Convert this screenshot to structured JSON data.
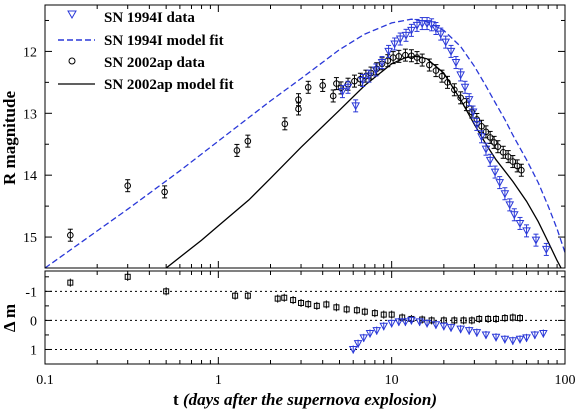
{
  "chart_data": [
    {
      "id": "top",
      "type": "scatter",
      "x_scale": "log",
      "y_inverted": true,
      "xlim": [
        0.1,
        100
      ],
      "ylim": [
        11.25,
        15.5
      ],
      "ylabel": "R magnitude",
      "yticks": [
        "12",
        "13",
        "14",
        "15"
      ],
      "legend": {
        "placement": "top-left",
        "entries": [
          {
            "label": "SN 1994I data",
            "marker": "triangle-down",
            "color": "#2a38d8"
          },
          {
            "label": "SN 1994I model fit",
            "line": "dashed",
            "color": "#2a38d8"
          },
          {
            "label": "SN 2002ap data",
            "marker": "circle",
            "color": "#000000"
          },
          {
            "label": "SN 2002ap model fit",
            "line": "solid",
            "color": "#000000"
          }
        ]
      },
      "series": [
        {
          "name": "SN 2002ap data",
          "marker": "circle",
          "color": "#000000",
          "points": [
            [
              0.14,
              14.97
            ],
            [
              0.3,
              14.17
            ],
            [
              0.49,
              14.27
            ],
            [
              1.28,
              13.6
            ],
            [
              1.48,
              13.45
            ],
            [
              2.42,
              13.17
            ],
            [
              2.9,
              12.93
            ],
            [
              2.9,
              12.78
            ],
            [
              3.3,
              12.58
            ],
            [
              4.0,
              12.55
            ],
            [
              4.6,
              12.72
            ],
            [
              4.8,
              12.52
            ],
            [
              5.1,
              12.59
            ],
            [
              5.6,
              12.53
            ],
            [
              6.1,
              12.48
            ],
            [
              6.6,
              12.45
            ],
            [
              7.1,
              12.4
            ],
            [
              7.6,
              12.35
            ],
            [
              8.2,
              12.28
            ],
            [
              8.8,
              12.2
            ],
            [
              9.5,
              12.15
            ],
            [
              10.2,
              12.1
            ],
            [
              11.0,
              12.08
            ],
            [
              12.0,
              12.06
            ],
            [
              13.0,
              12.07
            ],
            [
              14.0,
              12.1
            ],
            [
              15.0,
              12.14
            ],
            [
              16.5,
              12.22
            ],
            [
              18.0,
              12.31
            ],
            [
              19.5,
              12.4
            ],
            [
              21.0,
              12.5
            ],
            [
              23.0,
              12.62
            ],
            [
              25.0,
              12.75
            ],
            [
              27.0,
              12.86
            ],
            [
              29.0,
              12.98
            ],
            [
              31.0,
              13.1
            ],
            [
              33.0,
              13.21
            ],
            [
              35.0,
              13.3
            ],
            [
              37.0,
              13.39
            ],
            [
              39.0,
              13.47
            ],
            [
              41.0,
              13.54
            ],
            [
              44.0,
              13.63
            ],
            [
              47.0,
              13.7
            ],
            [
              50.0,
              13.78
            ],
            [
              53.0,
              13.85
            ],
            [
              56.0,
              13.92
            ]
          ]
        },
        {
          "name": "SN 1994I data",
          "marker": "triangle-down",
          "color": "#2a38d8",
          "points": [
            [
              5.2,
              12.65
            ],
            [
              5.6,
              12.58
            ],
            [
              6.2,
              12.88
            ],
            [
              6.8,
              12.47
            ],
            [
              7.4,
              12.4
            ],
            [
              8.1,
              12.3
            ],
            [
              8.8,
              12.18
            ],
            [
              9.6,
              12.0
            ],
            [
              10.4,
              11.88
            ],
            [
              11.2,
              11.8
            ],
            [
              12.1,
              11.74
            ],
            [
              13.0,
              11.66
            ],
            [
              14.0,
              11.58
            ],
            [
              15.0,
              11.55
            ],
            [
              16.0,
              11.55
            ],
            [
              17.0,
              11.57
            ],
            [
              18.0,
              11.63
            ],
            [
              19.2,
              11.72
            ],
            [
              20.5,
              11.85
            ],
            [
              22.0,
              12.0
            ],
            [
              23.5,
              12.18
            ],
            [
              25.0,
              12.38
            ],
            [
              26.5,
              12.58
            ],
            [
              28.0,
              12.78
            ],
            [
              29.5,
              12.98
            ],
            [
              31.0,
              13.18
            ],
            [
              33.0,
              13.38
            ],
            [
              35.0,
              13.58
            ],
            [
              37.0,
              13.76
            ],
            [
              39.5,
              13.95
            ],
            [
              42.0,
              14.12
            ],
            [
              45.0,
              14.3
            ],
            [
              48.0,
              14.48
            ],
            [
              51.0,
              14.64
            ],
            [
              55.0,
              14.78
            ],
            [
              60.0,
              14.9
            ],
            [
              68.0,
              15.05
            ],
            [
              78.0,
              15.2
            ]
          ]
        }
      ],
      "models": [
        {
          "name": "SN 1994I model fit",
          "line": "dashed",
          "color": "#2a38d8",
          "points": [
            [
              0.1,
              15.5
            ],
            [
              0.3,
              14.55
            ],
            [
              0.6,
              13.93
            ],
            [
              1.0,
              13.45
            ],
            [
              2.0,
              12.8
            ],
            [
              3.0,
              12.44
            ],
            [
              5.0,
              11.97
            ],
            [
              7.0,
              11.72
            ],
            [
              10.0,
              11.54
            ],
            [
              13.0,
              11.48
            ],
            [
              16.0,
              11.52
            ],
            [
              20.0,
              11.66
            ],
            [
              25.0,
              11.92
            ],
            [
              30.0,
              12.24
            ],
            [
              35.0,
              12.56
            ],
            [
              40.0,
              12.85
            ],
            [
              45.0,
              13.1
            ],
            [
              50.0,
              13.35
            ],
            [
              60.0,
              13.75
            ],
            [
              70.0,
              14.12
            ],
            [
              80.0,
              14.5
            ],
            [
              90.0,
              14.87
            ],
            [
              100.0,
              15.25
            ]
          ]
        },
        {
          "name": "SN 2002ap model fit",
          "line": "solid",
          "color": "#000000",
          "points": [
            [
              0.5,
              15.5
            ],
            [
              0.8,
              15.05
            ],
            [
              1.0,
              14.82
            ],
            [
              1.5,
              14.4
            ],
            [
              2.0,
              14.05
            ],
            [
              3.0,
              13.55
            ],
            [
              5.0,
              12.95
            ],
            [
              7.0,
              12.55
            ],
            [
              10.0,
              12.2
            ],
            [
              12.0,
              12.1
            ],
            [
              14.0,
              12.08
            ],
            [
              16.0,
              12.12
            ],
            [
              20.0,
              12.35
            ],
            [
              25.0,
              12.78
            ],
            [
              30.0,
              13.18
            ],
            [
              35.0,
              13.5
            ],
            [
              40.0,
              13.75
            ],
            [
              50.0,
              14.1
            ],
            [
              60.0,
              14.42
            ],
            [
              70.0,
              14.75
            ],
            [
              80.0,
              15.08
            ],
            [
              90.0,
              15.38
            ],
            [
              95.0,
              15.5
            ]
          ]
        }
      ]
    },
    {
      "id": "bottom",
      "type": "scatter",
      "x_scale": "log",
      "y_inverted": true,
      "xlim": [
        0.1,
        100
      ],
      "ylim": [
        -1.7,
        1.5
      ],
      "xlabel": "t (days after the supernova explosion)",
      "ylabel": "Δ m",
      "xticks": [
        "0.1",
        "1",
        "10",
        "100"
      ],
      "yticks": [
        "-1",
        "0",
        "1"
      ],
      "reference_lines": [
        -1,
        0,
        1
      ],
      "series": [
        {
          "name": "SN 2002ap residuals",
          "marker": "square",
          "color": "#000000",
          "points": [
            [
              0.14,
              -1.3
            ],
            [
              0.3,
              -1.5
            ],
            [
              0.5,
              -1.0
            ],
            [
              1.25,
              -0.85
            ],
            [
              1.48,
              -0.85
            ],
            [
              2.2,
              -0.75
            ],
            [
              2.4,
              -0.78
            ],
            [
              2.7,
              -0.7
            ],
            [
              3.0,
              -0.6
            ],
            [
              3.3,
              -0.56
            ],
            [
              3.7,
              -0.5
            ],
            [
              4.2,
              -0.55
            ],
            [
              4.8,
              -0.45
            ],
            [
              5.5,
              -0.38
            ],
            [
              6.3,
              -0.35
            ],
            [
              7.0,
              -0.3
            ],
            [
              8.0,
              -0.25
            ],
            [
              9.0,
              -0.2
            ],
            [
              10.0,
              -0.2
            ],
            [
              11.5,
              -0.1
            ],
            [
              13.0,
              -0.05
            ],
            [
              15.0,
              -0.03
            ],
            [
              17.0,
              0.0
            ],
            [
              20.0,
              0.0
            ],
            [
              23.0,
              0.0
            ],
            [
              26.0,
              0.0
            ],
            [
              29.0,
              0.0
            ],
            [
              32.0,
              -0.05
            ],
            [
              36.0,
              -0.05
            ],
            [
              40.0,
              -0.05
            ],
            [
              45.0,
              -0.08
            ],
            [
              50.0,
              -0.1
            ],
            [
              55.0,
              -0.08
            ]
          ]
        },
        {
          "name": "SN 1994I residuals",
          "marker": "triangle-down",
          "color": "#2a38d8",
          "points": [
            [
              6.0,
              1.0
            ],
            [
              6.4,
              0.8
            ],
            [
              6.9,
              0.6
            ],
            [
              7.5,
              0.45
            ],
            [
              8.2,
              0.35
            ],
            [
              9.0,
              0.2
            ],
            [
              10.0,
              0.1
            ],
            [
              11.0,
              0.05
            ],
            [
              12.0,
              0.05
            ],
            [
              13.0,
              0.0
            ],
            [
              14.5,
              0.05
            ],
            [
              16.0,
              0.1
            ],
            [
              18.0,
              0.15
            ],
            [
              20.0,
              0.2
            ],
            [
              22.0,
              0.25
            ],
            [
              25.0,
              0.3
            ],
            [
              28.0,
              0.35
            ],
            [
              31.0,
              0.42
            ],
            [
              35.0,
              0.5
            ],
            [
              40.0,
              0.58
            ],
            [
              45.0,
              0.65
            ],
            [
              50.0,
              0.7
            ],
            [
              55.0,
              0.65
            ],
            [
              60.0,
              0.6
            ],
            [
              67.0,
              0.5
            ],
            [
              75.0,
              0.45
            ]
          ]
        }
      ]
    }
  ]
}
